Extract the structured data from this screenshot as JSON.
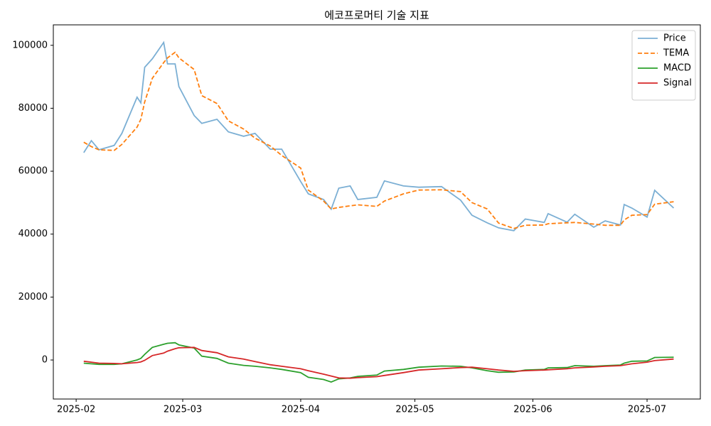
{
  "chart_data": {
    "type": "line",
    "title": "에코프로머티 기술 지표",
    "x": [
      "2025-02-03",
      "2025-02-05",
      "2025-02-07",
      "2025-02-11",
      "2025-02-13",
      "2025-02-17",
      "2025-02-18",
      "2025-02-19",
      "2025-02-21",
      "2025-02-24",
      "2025-02-25",
      "2025-02-27",
      "2025-02-28",
      "2025-03-04",
      "2025-03-06",
      "2025-03-10",
      "2025-03-13",
      "2025-03-17",
      "2025-03-20",
      "2025-03-24",
      "2025-03-27",
      "2025-04-01",
      "2025-04-03",
      "2025-04-07",
      "2025-04-09",
      "2025-04-11",
      "2025-04-14",
      "2025-04-16",
      "2025-04-21",
      "2025-04-23",
      "2025-04-28",
      "2025-05-02",
      "2025-05-08",
      "2025-05-13",
      "2025-05-16",
      "2025-05-20",
      "2025-05-23",
      "2025-05-27",
      "2025-05-30",
      "2025-06-04",
      "2025-06-05",
      "2025-06-10",
      "2025-06-12",
      "2025-06-17",
      "2025-06-20",
      "2025-06-24",
      "2025-06-25",
      "2025-06-27",
      "2025-07-01",
      "2025-07-03",
      "2025-07-08"
    ],
    "series": [
      {
        "name": "Price",
        "color": "#7bafd4",
        "linestyle": "solid",
        "values": [
          65900,
          69700,
          66800,
          68200,
          72000,
          83500,
          81700,
          93000,
          95700,
          100900,
          94100,
          94100,
          86900,
          77700,
          75200,
          76500,
          72500,
          71100,
          72000,
          67000,
          67000,
          56700,
          52800,
          51000,
          47900,
          54600,
          55300,
          51000,
          51700,
          56900,
          55300,
          54900,
          55100,
          50800,
          46000,
          43600,
          42000,
          41100,
          44800,
          43700,
          46500,
          43800,
          46300,
          42200,
          44200,
          42900,
          49400,
          48300,
          45400,
          53900,
          48300
        ]
      },
      {
        "name": "TEMA",
        "color": "#ff7f0e",
        "linestyle": "dashed",
        "values": [
          69200,
          67800,
          66800,
          66600,
          68500,
          74000,
          76500,
          82000,
          89500,
          94500,
          96000,
          97800,
          96000,
          92300,
          84000,
          81500,
          76000,
          73400,
          70500,
          68000,
          65000,
          61000,
          54000,
          50500,
          48000,
          48500,
          49000,
          49300,
          48800,
          50500,
          52800,
          54000,
          54100,
          53500,
          50000,
          48000,
          43500,
          41800,
          42800,
          42900,
          43300,
          43600,
          43700,
          43200,
          42800,
          42800,
          44500,
          46000,
          46200,
          49500,
          50300
        ]
      },
      {
        "name": "MACD",
        "color": "#2ca02c",
        "linestyle": "solid",
        "values": [
          -1000,
          -1200,
          -1400,
          -1400,
          -1200,
          0,
          500,
          1800,
          4000,
          5000,
          5300,
          5500,
          4800,
          3800,
          1200,
          500,
          -1000,
          -1700,
          -2000,
          -2500,
          -3000,
          -4000,
          -5500,
          -6200,
          -7000,
          -6000,
          -5700,
          -5200,
          -4800,
          -3500,
          -3000,
          -2300,
          -1900,
          -2000,
          -2500,
          -3400,
          -3900,
          -3800,
          -3200,
          -3000,
          -2500,
          -2400,
          -1800,
          -2000,
          -1800,
          -1600,
          -1000,
          -400,
          -300,
          800,
          900
        ]
      },
      {
        "name": "Signal",
        "color": "#d62728",
        "linestyle": "solid",
        "values": [
          -400,
          -700,
          -1000,
          -1100,
          -1200,
          -800,
          -600,
          -100,
          1400,
          2200,
          2800,
          3600,
          3900,
          4000,
          3000,
          2300,
          1000,
          300,
          -500,
          -1500,
          -2000,
          -2800,
          -3400,
          -4500,
          -5100,
          -5700,
          -5800,
          -5600,
          -5300,
          -4900,
          -4000,
          -3200,
          -2800,
          -2400,
          -2300,
          -2800,
          -3200,
          -3600,
          -3400,
          -3200,
          -3100,
          -2800,
          -2500,
          -2200,
          -2000,
          -1800,
          -1600,
          -1200,
          -700,
          -200,
          300
        ]
      }
    ],
    "xlim": [
      "2025-01-26",
      "2025-07-15"
    ],
    "xticks": [
      {
        "value": "2025-02-01",
        "label": "2025-02"
      },
      {
        "value": "2025-03-01",
        "label": "2025-03"
      },
      {
        "value": "2025-04-01",
        "label": "2025-04"
      },
      {
        "value": "2025-05-01",
        "label": "2025-05"
      },
      {
        "value": "2025-06-01",
        "label": "2025-06"
      },
      {
        "value": "2025-07-01",
        "label": "2025-07"
      }
    ],
    "ylim": [
      -12400,
      106500
    ],
    "yticks": [
      0,
      20000,
      40000,
      60000,
      80000,
      100000
    ],
    "grid": false,
    "legend": "upper right"
  }
}
